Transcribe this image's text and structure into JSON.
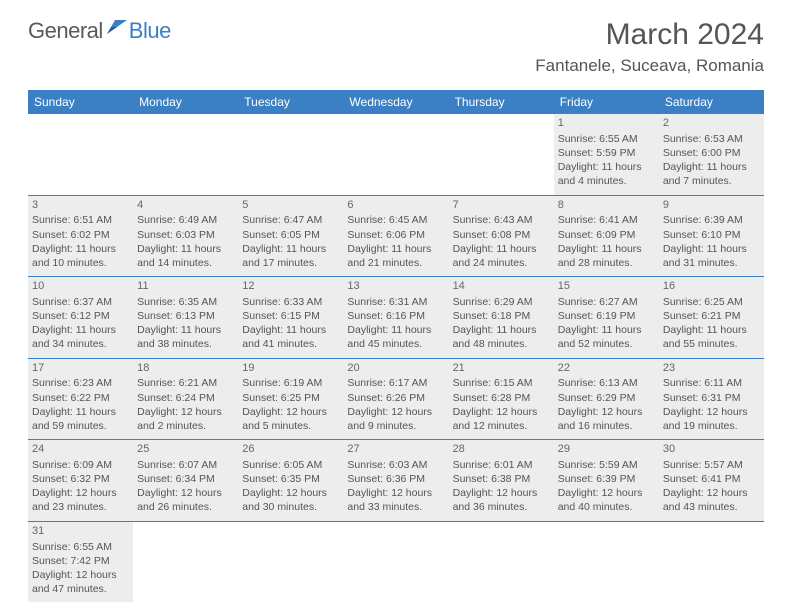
{
  "brand": {
    "part1": "General",
    "part2": "Blue"
  },
  "title": "March 2024",
  "location": "Fantanele, Suceava, Romania",
  "colors": {
    "header_bg": "#3b7fc4",
    "header_fg": "#ffffff",
    "shaded_bg": "#ededed",
    "rule": "#3b7fc4",
    "text": "#555555"
  },
  "columns": [
    "Sunday",
    "Monday",
    "Tuesday",
    "Wednesday",
    "Thursday",
    "Friday",
    "Saturday"
  ],
  "weeks": [
    [
      {
        "empty": true
      },
      {
        "empty": true
      },
      {
        "empty": true
      },
      {
        "empty": true
      },
      {
        "empty": true
      },
      {
        "day": "1",
        "shaded": true,
        "sunrise": "Sunrise: 6:55 AM",
        "sunset": "Sunset: 5:59 PM",
        "daylight": "Daylight: 11 hours and 4 minutes."
      },
      {
        "day": "2",
        "shaded": true,
        "sunrise": "Sunrise: 6:53 AM",
        "sunset": "Sunset: 6:00 PM",
        "daylight": "Daylight: 11 hours and 7 minutes."
      }
    ],
    [
      {
        "day": "3",
        "shaded": true,
        "sunrise": "Sunrise: 6:51 AM",
        "sunset": "Sunset: 6:02 PM",
        "daylight": "Daylight: 11 hours and 10 minutes."
      },
      {
        "day": "4",
        "shaded": true,
        "sunrise": "Sunrise: 6:49 AM",
        "sunset": "Sunset: 6:03 PM",
        "daylight": "Daylight: 11 hours and 14 minutes."
      },
      {
        "day": "5",
        "shaded": true,
        "sunrise": "Sunrise: 6:47 AM",
        "sunset": "Sunset: 6:05 PM",
        "daylight": "Daylight: 11 hours and 17 minutes."
      },
      {
        "day": "6",
        "shaded": true,
        "sunrise": "Sunrise: 6:45 AM",
        "sunset": "Sunset: 6:06 PM",
        "daylight": "Daylight: 11 hours and 21 minutes."
      },
      {
        "day": "7",
        "shaded": true,
        "sunrise": "Sunrise: 6:43 AM",
        "sunset": "Sunset: 6:08 PM",
        "daylight": "Daylight: 11 hours and 24 minutes."
      },
      {
        "day": "8",
        "shaded": true,
        "sunrise": "Sunrise: 6:41 AM",
        "sunset": "Sunset: 6:09 PM",
        "daylight": "Daylight: 11 hours and 28 minutes."
      },
      {
        "day": "9",
        "shaded": true,
        "sunrise": "Sunrise: 6:39 AM",
        "sunset": "Sunset: 6:10 PM",
        "daylight": "Daylight: 11 hours and 31 minutes."
      }
    ],
    [
      {
        "day": "10",
        "shaded": true,
        "sunrise": "Sunrise: 6:37 AM",
        "sunset": "Sunset: 6:12 PM",
        "daylight": "Daylight: 11 hours and 34 minutes."
      },
      {
        "day": "11",
        "shaded": true,
        "sunrise": "Sunrise: 6:35 AM",
        "sunset": "Sunset: 6:13 PM",
        "daylight": "Daylight: 11 hours and 38 minutes."
      },
      {
        "day": "12",
        "shaded": true,
        "sunrise": "Sunrise: 6:33 AM",
        "sunset": "Sunset: 6:15 PM",
        "daylight": "Daylight: 11 hours and 41 minutes."
      },
      {
        "day": "13",
        "shaded": true,
        "sunrise": "Sunrise: 6:31 AM",
        "sunset": "Sunset: 6:16 PM",
        "daylight": "Daylight: 11 hours and 45 minutes."
      },
      {
        "day": "14",
        "shaded": true,
        "sunrise": "Sunrise: 6:29 AM",
        "sunset": "Sunset: 6:18 PM",
        "daylight": "Daylight: 11 hours and 48 minutes."
      },
      {
        "day": "15",
        "shaded": true,
        "sunrise": "Sunrise: 6:27 AM",
        "sunset": "Sunset: 6:19 PM",
        "daylight": "Daylight: 11 hours and 52 minutes."
      },
      {
        "day": "16",
        "shaded": true,
        "sunrise": "Sunrise: 6:25 AM",
        "sunset": "Sunset: 6:21 PM",
        "daylight": "Daylight: 11 hours and 55 minutes."
      }
    ],
    [
      {
        "day": "17",
        "shaded": true,
        "sunrise": "Sunrise: 6:23 AM",
        "sunset": "Sunset: 6:22 PM",
        "daylight": "Daylight: 11 hours and 59 minutes."
      },
      {
        "day": "18",
        "shaded": true,
        "sunrise": "Sunrise: 6:21 AM",
        "sunset": "Sunset: 6:24 PM",
        "daylight": "Daylight: 12 hours and 2 minutes."
      },
      {
        "day": "19",
        "shaded": true,
        "sunrise": "Sunrise: 6:19 AM",
        "sunset": "Sunset: 6:25 PM",
        "daylight": "Daylight: 12 hours and 5 minutes."
      },
      {
        "day": "20",
        "shaded": true,
        "sunrise": "Sunrise: 6:17 AM",
        "sunset": "Sunset: 6:26 PM",
        "daylight": "Daylight: 12 hours and 9 minutes."
      },
      {
        "day": "21",
        "shaded": true,
        "sunrise": "Sunrise: 6:15 AM",
        "sunset": "Sunset: 6:28 PM",
        "daylight": "Daylight: 12 hours and 12 minutes."
      },
      {
        "day": "22",
        "shaded": true,
        "sunrise": "Sunrise: 6:13 AM",
        "sunset": "Sunset: 6:29 PM",
        "daylight": "Daylight: 12 hours and 16 minutes."
      },
      {
        "day": "23",
        "shaded": true,
        "sunrise": "Sunrise: 6:11 AM",
        "sunset": "Sunset: 6:31 PM",
        "daylight": "Daylight: 12 hours and 19 minutes."
      }
    ],
    [
      {
        "day": "24",
        "shaded": true,
        "sunrise": "Sunrise: 6:09 AM",
        "sunset": "Sunset: 6:32 PM",
        "daylight": "Daylight: 12 hours and 23 minutes."
      },
      {
        "day": "25",
        "shaded": true,
        "sunrise": "Sunrise: 6:07 AM",
        "sunset": "Sunset: 6:34 PM",
        "daylight": "Daylight: 12 hours and 26 minutes."
      },
      {
        "day": "26",
        "shaded": true,
        "sunrise": "Sunrise: 6:05 AM",
        "sunset": "Sunset: 6:35 PM",
        "daylight": "Daylight: 12 hours and 30 minutes."
      },
      {
        "day": "27",
        "shaded": true,
        "sunrise": "Sunrise: 6:03 AM",
        "sunset": "Sunset: 6:36 PM",
        "daylight": "Daylight: 12 hours and 33 minutes."
      },
      {
        "day": "28",
        "shaded": true,
        "sunrise": "Sunrise: 6:01 AM",
        "sunset": "Sunset: 6:38 PM",
        "daylight": "Daylight: 12 hours and 36 minutes."
      },
      {
        "day": "29",
        "shaded": true,
        "sunrise": "Sunrise: 5:59 AM",
        "sunset": "Sunset: 6:39 PM",
        "daylight": "Daylight: 12 hours and 40 minutes."
      },
      {
        "day": "30",
        "shaded": true,
        "sunrise": "Sunrise: 5:57 AM",
        "sunset": "Sunset: 6:41 PM",
        "daylight": "Daylight: 12 hours and 43 minutes."
      }
    ],
    [
      {
        "day": "31",
        "shaded": true,
        "sunrise": "Sunrise: 6:55 AM",
        "sunset": "Sunset: 7:42 PM",
        "daylight": "Daylight: 12 hours and 47 minutes."
      },
      {
        "empty": true
      },
      {
        "empty": true
      },
      {
        "empty": true
      },
      {
        "empty": true
      },
      {
        "empty": true
      },
      {
        "empty": true
      }
    ]
  ]
}
